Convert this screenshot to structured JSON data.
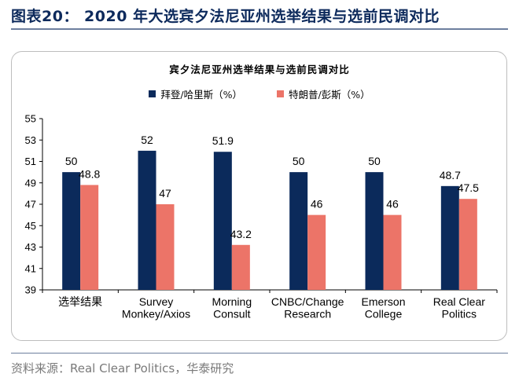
{
  "figure_title": "图表20： 2020 年大选宾夕法尼亚州选举结果与选前民调对比",
  "source": "资料来源：Real Clear Politics，华泰研究",
  "chart_data": {
    "type": "bar",
    "title": "宾夕法尼亚州选举结果与选前民调对比",
    "categories": [
      [
        "选举结果"
      ],
      [
        "Survey",
        "Monkey/Axios"
      ],
      [
        "Morning",
        "Consult"
      ],
      [
        "CNBC/Change",
        "Research"
      ],
      [
        "Emerson",
        "College"
      ],
      [
        "Real Clear",
        "Politics"
      ]
    ],
    "series": [
      {
        "name": "拜登/哈里斯（%）",
        "color": "#0b2a5b",
        "values": [
          50,
          52,
          51.9,
          50,
          50,
          48.7
        ]
      },
      {
        "name": "特朗普/彭斯（%）",
        "color": "#ec7468",
        "values": [
          48.8,
          47,
          43.2,
          46,
          46,
          47.5
        ]
      }
    ],
    "ylim": [
      39,
      55
    ],
    "yticks": [
      39,
      41,
      43,
      45,
      47,
      49,
      51,
      53,
      55
    ],
    "grid": false,
    "legend_position": "top-center"
  }
}
